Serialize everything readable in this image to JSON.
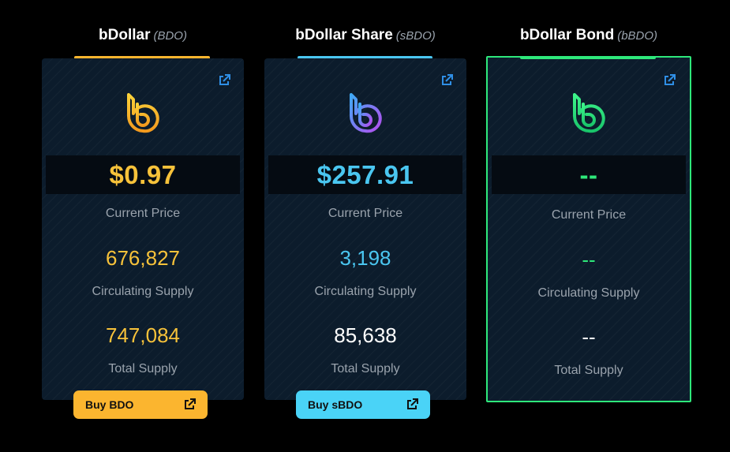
{
  "tokens": [
    {
      "name": "bDollar",
      "ticker": "(BDO)",
      "price": "$0.97",
      "price_label": "Current Price",
      "circulating_supply": "676,827",
      "circulating_label": "Circulating Supply",
      "total_supply": "747,084",
      "total_label": "Total Supply",
      "buy_label": "Buy BDO",
      "accent": "#fbb52f",
      "logo_icon": "bdo-logo-icon",
      "link_icon": "external-link-icon"
    },
    {
      "name": "bDollar Share",
      "ticker": "(sBDO)",
      "price": "$257.91",
      "price_label": "Current Price",
      "circulating_supply": "3,198",
      "circulating_label": "Circulating Supply",
      "total_supply": "85,638",
      "total_label": "Total Supply",
      "buy_label": "Buy sBDO",
      "accent": "#4ac6f0",
      "logo_icon": "sbdo-logo-icon",
      "link_icon": "external-link-icon"
    },
    {
      "name": "bDollar Bond",
      "ticker": "(bBDO)",
      "price": "--",
      "price_label": "Current Price",
      "circulating_supply": "--",
      "circulating_label": "Circulating Supply",
      "total_supply": "--",
      "total_label": "Total Supply",
      "accent": "#2ee87a",
      "logo_icon": "bbdo-logo-icon",
      "link_icon": "external-link-icon"
    }
  ],
  "colors": {
    "bdo_gold": "#f7c23a",
    "sbdo_cyan": "#4ac6f0",
    "bbdo_green": "#2ee87a",
    "link_blue": "#2f8fe6",
    "label_gray": "#9aa3ad"
  }
}
